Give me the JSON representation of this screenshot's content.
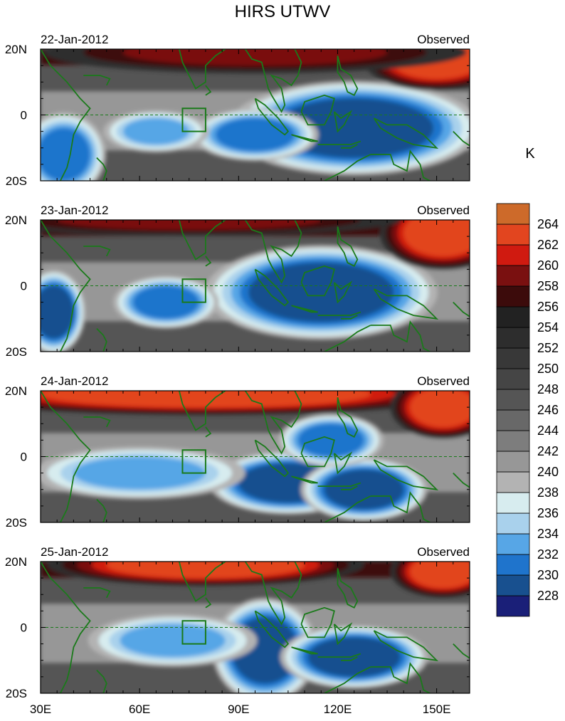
{
  "chart_data": {
    "type": "heatmap",
    "title": "HIRS UTWV",
    "colorbar": {
      "unit": "K",
      "levels": [
        228,
        230,
        232,
        234,
        236,
        238,
        240,
        242,
        244,
        246,
        248,
        250,
        252,
        254,
        256,
        258,
        260,
        262,
        264
      ],
      "colors": [
        "#1a1f78",
        "#18508f",
        "#1f74cc",
        "#57a6e6",
        "#a9d1ec",
        "#d7ecef",
        "#b3b3b3",
        "#979797",
        "#7d7d7d",
        "#686868",
        "#555555",
        "#454545",
        "#383838",
        "#2d2d2d",
        "#222222",
        "#3c0b0b",
        "#7a1010",
        "#d01a10",
        "#e2451f",
        "#cd6a2a"
      ]
    },
    "xaxis": {
      "ticks": [
        30,
        60,
        90,
        120,
        150
      ],
      "tick_labels": [
        "30E",
        "60E",
        "90E",
        "120E",
        "150E"
      ],
      "range": [
        30,
        160
      ]
    },
    "yaxis": {
      "ticks": [
        20,
        0,
        -20
      ],
      "tick_labels": [
        "20N",
        "0",
        "20S"
      ],
      "range": [
        -20,
        20
      ]
    },
    "panels": [
      {
        "date": "22-Jan-2012",
        "label": "Observed",
        "features": [
          {
            "kind": "moist",
            "lon": 125,
            "lat": -4,
            "rlon": 24,
            "rlat": 9,
            "value": 228
          },
          {
            "kind": "moist",
            "lon": 95,
            "lat": -6,
            "rlon": 12,
            "rlat": 5,
            "value": 229
          },
          {
            "kind": "moist",
            "lon": 65,
            "lat": -5,
            "rlon": 10,
            "rlat": 4,
            "value": 231
          },
          {
            "kind": "moist",
            "lon": 37,
            "lat": -12,
            "rlon": 8,
            "rlat": 8,
            "value": 229
          },
          {
            "kind": "dry",
            "lon": 150,
            "lat": 17,
            "rlon": 14,
            "rlat": 6,
            "value": 263
          },
          {
            "kind": "dry",
            "lon": 95,
            "lat": 19,
            "rlon": 40,
            "rlat": 4,
            "value": 258
          }
        ]
      },
      {
        "date": "23-Jan-2012",
        "label": "Observed",
        "features": [
          {
            "kind": "moist",
            "lon": 115,
            "lat": -2,
            "rlon": 22,
            "rlat": 9,
            "value": 228
          },
          {
            "kind": "moist",
            "lon": 68,
            "lat": -5,
            "rlon": 10,
            "rlat": 5,
            "value": 230
          },
          {
            "kind": "moist",
            "lon": 34,
            "lat": -8,
            "rlon": 6,
            "rlat": 8,
            "value": 228
          },
          {
            "kind": "dry",
            "lon": 152,
            "lat": 16,
            "rlon": 12,
            "rlat": 7,
            "value": 262
          },
          {
            "kind": "dry",
            "lon": 75,
            "lat": 20,
            "rlon": 40,
            "rlat": 3,
            "value": 258
          }
        ]
      },
      {
        "date": "24-Jan-2012",
        "label": "Observed",
        "features": [
          {
            "kind": "moist",
            "lon": 105,
            "lat": -8,
            "rlon": 15,
            "rlat": 6,
            "value": 228
          },
          {
            "kind": "moist",
            "lon": 128,
            "lat": -10,
            "rlon": 12,
            "rlat": 6,
            "value": 228
          },
          {
            "kind": "moist",
            "lon": 60,
            "lat": -5,
            "rlon": 20,
            "rlat": 5,
            "value": 232
          },
          {
            "kind": "moist",
            "lon": 118,
            "lat": 5,
            "rlon": 10,
            "rlat": 5,
            "value": 230
          },
          {
            "kind": "dry",
            "lon": 80,
            "lat": 19,
            "rlon": 50,
            "rlat": 4,
            "value": 262
          },
          {
            "kind": "dry",
            "lon": 152,
            "lat": 15,
            "rlon": 10,
            "rlat": 6,
            "value": 263
          }
        ]
      },
      {
        "date": "25-Jan-2012",
        "label": "Observed",
        "features": [
          {
            "kind": "moist",
            "lon": 98,
            "lat": -7,
            "rlon": 10,
            "rlat": 10,
            "value": 228
          },
          {
            "kind": "moist",
            "lon": 125,
            "lat": -9,
            "rlon": 14,
            "rlat": 6,
            "value": 228
          },
          {
            "kind": "moist",
            "lon": 70,
            "lat": -4,
            "rlon": 16,
            "rlat": 5,
            "value": 231
          },
          {
            "kind": "dry",
            "lon": 80,
            "lat": 19,
            "rlon": 30,
            "rlat": 4,
            "value": 262
          },
          {
            "kind": "dry",
            "lon": 152,
            "lat": 17,
            "rlon": 10,
            "rlat": 5,
            "value": 262
          }
        ]
      }
    ],
    "box": {
      "lon": [
        73,
        80
      ],
      "lat": [
        -5,
        2
      ]
    },
    "equator_dashed": true,
    "coastline_color": "#1a7a1a"
  }
}
